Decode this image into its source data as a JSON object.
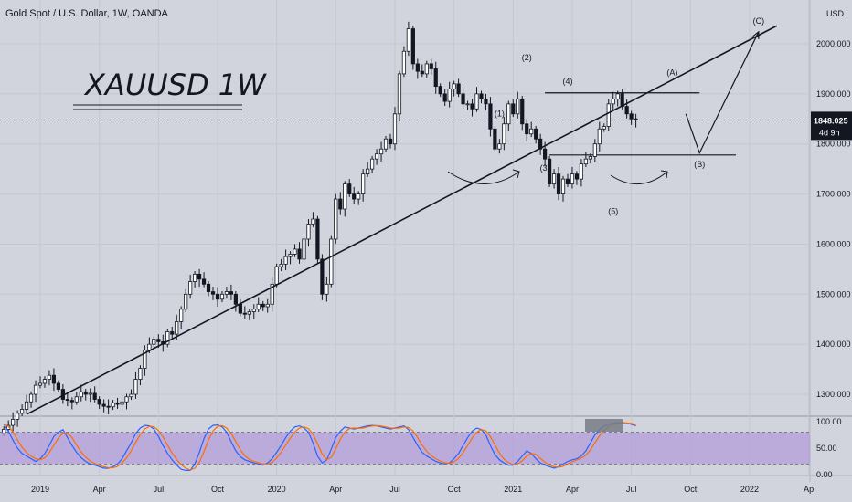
{
  "header": {
    "title": "Gold Spot / U.S. Dollar, 1W, OANDA"
  },
  "chart_data": {
    "type": "candlestick",
    "symbol_label": "XAUUSD 1W",
    "currency_label": "USD",
    "y_ticks": [
      "2000.000",
      "1900.000",
      "1800.000",
      "1700.000",
      "1600.000",
      "1500.000",
      "1400.000",
      "1300.000"
    ],
    "y_tick_values": [
      2000,
      1900,
      1800,
      1700,
      1600,
      1500,
      1400,
      1300
    ],
    "last_price": {
      "label": "1848.025",
      "value": 1848.025,
      "countdown": "4d 9h"
    },
    "x_ticks": [
      "2019",
      "Apr",
      "Jul",
      "Oct",
      "2020",
      "Apr",
      "Jul",
      "Oct",
      "2021",
      "Apr",
      "Jul",
      "Oct",
      "2022",
      "Ap"
    ],
    "x_tick_weeks": [
      8,
      21,
      34,
      47,
      60,
      73,
      86,
      99,
      112,
      125,
      138,
      151,
      164,
      177
    ],
    "weekly_closes": [
      1230,
      1238,
      1250,
      1262,
      1270,
      1285,
      1300,
      1318,
      1322,
      1330,
      1338,
      1322,
      1310,
      1290,
      1288,
      1285,
      1295,
      1305,
      1300,
      1302,
      1290,
      1280,
      1276,
      1275,
      1283,
      1280,
      1285,
      1295,
      1300,
      1330,
      1352,
      1388,
      1400,
      1410,
      1405,
      1400,
      1425,
      1420,
      1445,
      1470,
      1500,
      1525,
      1540,
      1530,
      1520,
      1505,
      1500,
      1490,
      1500,
      1505,
      1500,
      1480,
      1462,
      1460,
      1465,
      1470,
      1480,
      1475,
      1480,
      1520,
      1555,
      1560,
      1575,
      1580,
      1590,
      1570,
      1610,
      1640,
      1650,
      1570,
      1500,
      1520,
      1610,
      1690,
      1670,
      1720,
      1700,
      1690,
      1700,
      1740,
      1750,
      1770,
      1780,
      1790,
      1810,
      1800,
      1860,
      1940,
      1985,
      2030,
      1960,
      1945,
      1940,
      1960,
      1950,
      1915,
      1900,
      1885,
      1910,
      1920,
      1900,
      1880,
      1880,
      1870,
      1900,
      1890,
      1880,
      1830,
      1790,
      1800,
      1840,
      1880,
      1860,
      1890,
      1840,
      1820,
      1830,
      1810,
      1790,
      1770,
      1720,
      1740,
      1700,
      1730,
      1720,
      1740,
      1730,
      1760,
      1770,
      1775,
      1800,
      1830,
      1835,
      1880,
      1890,
      1900,
      1875,
      1860,
      1850,
      1848
    ],
    "trendline": {
      "from": {
        "week": 5,
        "price": 1260
      },
      "to": {
        "week": 170,
        "price": 2036
      }
    },
    "horizontal_levels": [
      {
        "price": 1902,
        "from_week": 119,
        "to_week": 153
      },
      {
        "price": 1778,
        "from_week": 120,
        "to_week": 161
      }
    ],
    "wave_labels": [
      {
        "text": "(1)",
        "week": 109,
        "price": 1855
      },
      {
        "text": "(2)",
        "week": 115,
        "price": 1967
      },
      {
        "text": "(3)",
        "week": 119,
        "price": 1747
      },
      {
        "text": "(4)",
        "week": 124,
        "price": 1920
      },
      {
        "text": "(5)",
        "week": 134,
        "price": 1660
      },
      {
        "text": "(A)",
        "week": 147,
        "price": 1937
      },
      {
        "text": "(B)",
        "week": 153,
        "price": 1754
      },
      {
        "text": "(C)",
        "week": 166,
        "price": 2040
      }
    ],
    "projection_path": [
      {
        "week": 150,
        "price": 1860
      },
      {
        "week": 153,
        "price": 1782
      },
      {
        "week": 166,
        "price": 2024
      }
    ],
    "stoch_rsi": {
      "levels": [
        "100.00",
        "50.00",
        "0.00"
      ],
      "level_values": [
        100,
        50,
        0
      ],
      "band": [
        20,
        80
      ],
      "k_color": "#2962ff",
      "d_color": "#ff6d00",
      "band_color": "#b39ddb",
      "k": [
        95,
        82,
        65,
        50,
        40,
        35,
        30,
        25,
        30,
        40,
        55,
        72,
        80,
        85,
        70,
        55,
        42,
        32,
        25,
        20,
        18,
        15,
        12,
        12,
        15,
        20,
        30,
        45,
        60,
        78,
        88,
        93,
        92,
        86,
        72,
        55,
        40,
        28,
        18,
        10,
        8,
        8,
        20,
        42,
        68,
        86,
        93,
        94,
        90,
        80,
        62,
        45,
        34,
        28,
        25,
        22,
        20,
        18,
        22,
        30,
        42,
        55,
        70,
        82,
        90,
        92,
        88,
        80,
        60,
        35,
        22,
        28,
        48,
        70,
        82,
        90,
        88,
        86,
        88,
        90,
        92,
        93,
        92,
        90,
        88,
        86,
        88,
        90,
        92,
        85,
        70,
        55,
        42,
        35,
        30,
        25,
        22,
        20,
        22,
        30,
        40,
        55,
        70,
        82,
        88,
        85,
        75,
        55,
        38,
        28,
        22,
        18,
        18,
        25,
        35,
        45,
        40,
        30,
        22,
        18,
        15,
        12,
        15,
        20,
        25,
        28,
        30,
        35,
        45,
        60,
        75,
        85,
        92,
        95,
        97,
        98,
        98,
        97,
        95,
        92
      ]
    }
  }
}
